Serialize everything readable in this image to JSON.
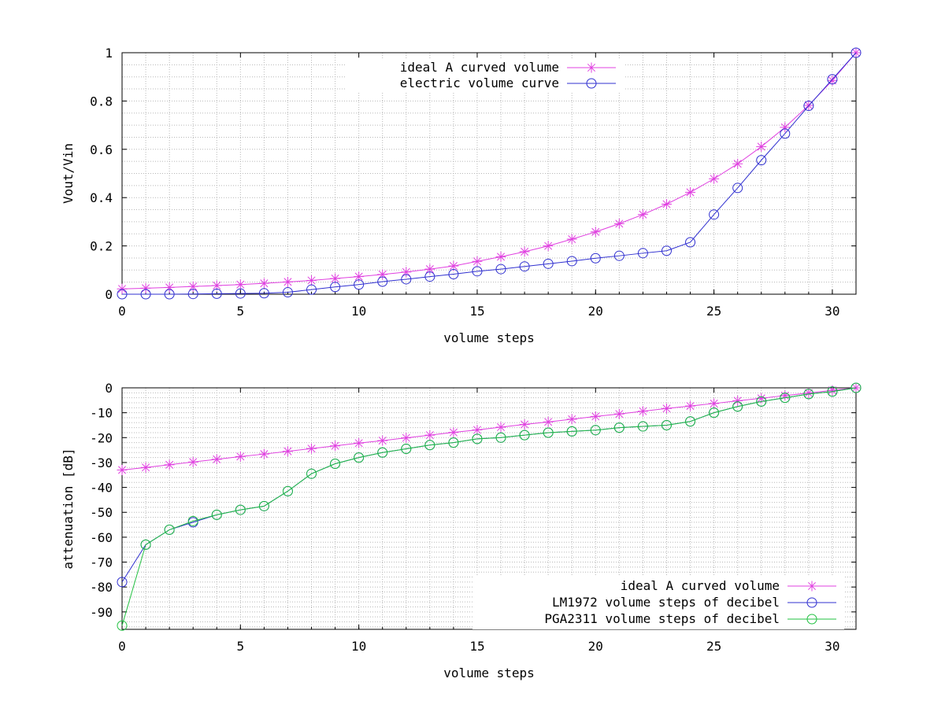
{
  "colors": {
    "ideal": "#e040e0",
    "lm1972": "#3030d0",
    "pga2311": "#20c040",
    "grid": "#b8b8b8",
    "axis": "#000000"
  },
  "chart_data": [
    {
      "type": "line",
      "xlabel": "volume steps",
      "ylabel": "Vout/Vin",
      "xlim": [
        0,
        31
      ],
      "ylim": [
        0,
        1
      ],
      "xticks": [
        "0",
        "5",
        "10",
        "15",
        "20",
        "25",
        "30"
      ],
      "yticks": [
        "0",
        "0.2",
        "0.4",
        "0.6",
        "0.8",
        "1"
      ],
      "grid": true,
      "legend_position": "top-center",
      "series": [
        {
          "name": "ideal A curved volume",
          "marker": "star",
          "color_key": "ideal",
          "x": [
            0,
            1,
            2,
            3,
            4,
            5,
            6,
            7,
            8,
            9,
            10,
            11,
            12,
            13,
            14,
            15,
            16,
            17,
            18,
            19,
            20,
            21,
            22,
            23,
            24,
            25,
            26,
            27,
            28,
            29,
            30,
            31
          ],
          "values": [
            0.022,
            0.025,
            0.028,
            0.032,
            0.036,
            0.04,
            0.045,
            0.051,
            0.057,
            0.065,
            0.073,
            0.082,
            0.092,
            0.104,
            0.117,
            0.136,
            0.155,
            0.176,
            0.2,
            0.228,
            0.258,
            0.292,
            0.33,
            0.373,
            0.422,
            0.478,
            0.54,
            0.611,
            0.691,
            0.782,
            0.885,
            1.0
          ]
        },
        {
          "name": "electric volume curve",
          "marker": "circle",
          "color_key": "lm1972",
          "x": [
            0,
            1,
            2,
            3,
            4,
            5,
            6,
            7,
            8,
            9,
            10,
            11,
            12,
            13,
            14,
            15,
            16,
            17,
            18,
            19,
            20,
            21,
            22,
            23,
            24,
            25,
            26,
            27,
            28,
            29,
            30,
            31
          ],
          "values": [
            0.0,
            0.0,
            0.0,
            0.001,
            0.002,
            0.003,
            0.004,
            0.008,
            0.019,
            0.03,
            0.04,
            0.052,
            0.062,
            0.073,
            0.083,
            0.095,
            0.104,
            0.115,
            0.126,
            0.137,
            0.149,
            0.159,
            0.17,
            0.18,
            0.215,
            0.33,
            0.44,
            0.555,
            0.665,
            0.78,
            0.89,
            1.0
          ]
        }
      ]
    },
    {
      "type": "line",
      "xlabel": "volume steps",
      "ylabel": "attenuation [dB]",
      "xlim": [
        0,
        31
      ],
      "ylim": [
        -97,
        0
      ],
      "xticks": [
        "0",
        "5",
        "10",
        "15",
        "20",
        "25",
        "30"
      ],
      "yticks": [
        "0",
        "-10",
        "-20",
        "-30",
        "-40",
        "-50",
        "-60",
        "-70",
        "-80",
        "-90"
      ],
      "grid": true,
      "legend_position": "bottom-right",
      "series": [
        {
          "name": "ideal A curved volume",
          "marker": "star",
          "color_key": "ideal",
          "x": [
            0,
            1,
            2,
            3,
            4,
            5,
            6,
            7,
            8,
            9,
            10,
            11,
            12,
            13,
            14,
            15,
            16,
            17,
            18,
            19,
            20,
            21,
            22,
            23,
            24,
            25,
            26,
            27,
            28,
            29,
            30,
            31
          ],
          "values": [
            -33.0,
            -32.0,
            -30.9,
            -29.8,
            -28.7,
            -27.6,
            -26.6,
            -25.5,
            -24.4,
            -23.3,
            -22.2,
            -21.2,
            -20.1,
            -19.0,
            -17.9,
            -16.9,
            -15.8,
            -14.7,
            -13.7,
            -12.6,
            -11.5,
            -10.5,
            -9.4,
            -8.3,
            -7.3,
            -6.3,
            -5.2,
            -4.2,
            -3.1,
            -2.1,
            -1.0,
            0.0
          ]
        },
        {
          "name": "LM1972 volume steps of decibel",
          "marker": "circle",
          "color_key": "lm1972",
          "x": [
            0,
            1,
            2,
            3,
            4,
            5,
            6,
            7,
            8,
            9,
            10,
            11,
            12,
            13,
            14,
            15,
            16,
            17,
            18,
            19,
            20,
            21,
            22,
            23,
            24,
            25,
            26,
            27,
            28,
            29,
            30,
            31
          ],
          "values": [
            -78.0,
            -63.0,
            -57.0,
            -54.0,
            -51.0,
            -49.0,
            -47.5,
            -41.5,
            -34.5,
            -30.5,
            -28.0,
            -26.0,
            -24.5,
            -23.0,
            -22.0,
            -20.5,
            -20.0,
            -19.0,
            -18.0,
            -17.5,
            -17.0,
            -16.0,
            -15.5,
            -15.0,
            -13.5,
            -10.0,
            -7.5,
            -5.5,
            -4.0,
            -2.5,
            -1.5,
            0.0
          ]
        },
        {
          "name": "PGA2311 volume steps of decibel",
          "marker": "circle",
          "color_key": "pga2311",
          "x": [
            0,
            1,
            2,
            3,
            4,
            5,
            6,
            7,
            8,
            9,
            10,
            11,
            12,
            13,
            14,
            15,
            16,
            17,
            18,
            19,
            20,
            21,
            22,
            23,
            24,
            25,
            26,
            27,
            28,
            29,
            30,
            31
          ],
          "values": [
            -95.5,
            -63.0,
            -57.0,
            -53.5,
            -51.0,
            -49.0,
            -47.5,
            -41.5,
            -34.5,
            -30.5,
            -28.0,
            -26.0,
            -24.5,
            -23.0,
            -22.0,
            -20.5,
            -20.0,
            -19.0,
            -18.0,
            -17.5,
            -17.0,
            -16.0,
            -15.5,
            -15.0,
            -13.5,
            -10.0,
            -7.5,
            -5.5,
            -4.0,
            -2.5,
            -1.5,
            0.0
          ]
        }
      ]
    }
  ]
}
